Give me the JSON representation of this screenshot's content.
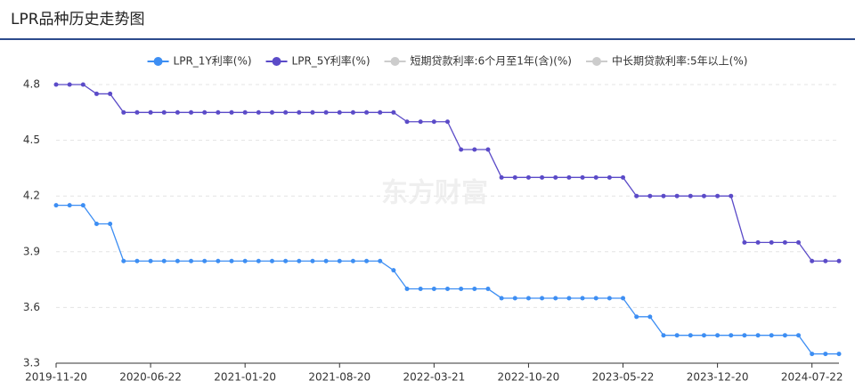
{
  "chart_data": {
    "type": "line",
    "title": "LPR品种历史走势图",
    "watermark": "东方财富",
    "categories": [
      "2019-11-20",
      null,
      null,
      null,
      null,
      null,
      null,
      "2020-06-22",
      null,
      null,
      null,
      null,
      null,
      null,
      "2021-01-20",
      null,
      null,
      null,
      null,
      null,
      null,
      "2021-08-20",
      null,
      null,
      null,
      null,
      null,
      null,
      "2022-03-21",
      null,
      null,
      null,
      null,
      null,
      null,
      "2022-10-20",
      null,
      null,
      null,
      null,
      null,
      null,
      "2023-05-22",
      null,
      null,
      null,
      null,
      null,
      null,
      "2023-12-20",
      null,
      null,
      null,
      null,
      null,
      null,
      "2024-07-22",
      null,
      null
    ],
    "series": [
      {
        "name": "LPR_1Y利率(%)",
        "color": "#3d8ef3",
        "values": [
          4.15,
          4.15,
          4.15,
          4.05,
          4.05,
          3.85,
          3.85,
          3.85,
          3.85,
          3.85,
          3.85,
          3.85,
          3.85,
          3.85,
          3.85,
          3.85,
          3.85,
          3.85,
          3.85,
          3.85,
          3.85,
          3.85,
          3.85,
          3.85,
          3.85,
          3.8,
          3.7,
          3.7,
          3.7,
          3.7,
          3.7,
          3.7,
          3.7,
          3.65,
          3.65,
          3.65,
          3.65,
          3.65,
          3.65,
          3.65,
          3.65,
          3.65,
          3.65,
          3.55,
          3.55,
          3.45,
          3.45,
          3.45,
          3.45,
          3.45,
          3.45,
          3.45,
          3.45,
          3.45,
          3.45,
          3.45,
          3.35,
          3.35,
          3.35
        ]
      },
      {
        "name": "LPR_5Y利率(%)",
        "color": "#5b4bc8",
        "values": [
          4.8,
          4.8,
          4.8,
          4.75,
          4.75,
          4.65,
          4.65,
          4.65,
          4.65,
          4.65,
          4.65,
          4.65,
          4.65,
          4.65,
          4.65,
          4.65,
          4.65,
          4.65,
          4.65,
          4.65,
          4.65,
          4.65,
          4.65,
          4.65,
          4.65,
          4.65,
          4.6,
          4.6,
          4.6,
          4.6,
          4.45,
          4.45,
          4.45,
          4.3,
          4.3,
          4.3,
          4.3,
          4.3,
          4.3,
          4.3,
          4.3,
          4.3,
          4.3,
          4.2,
          4.2,
          4.2,
          4.2,
          4.2,
          4.2,
          4.2,
          4.2,
          3.95,
          3.95,
          3.95,
          3.95,
          3.95,
          3.85,
          3.85,
          3.85
        ]
      }
    ],
    "inactive_series": [
      "短期贷款利率:6个月至1年(含)(%)",
      "中长期贷款利率:5年以上(%)"
    ],
    "inactive_color": "#cccccc",
    "ylim": [
      3.3,
      4.8
    ],
    "yticks": [
      3.3,
      3.6,
      3.9,
      4.2,
      4.5,
      4.8
    ],
    "grid": true,
    "legend": "top"
  }
}
